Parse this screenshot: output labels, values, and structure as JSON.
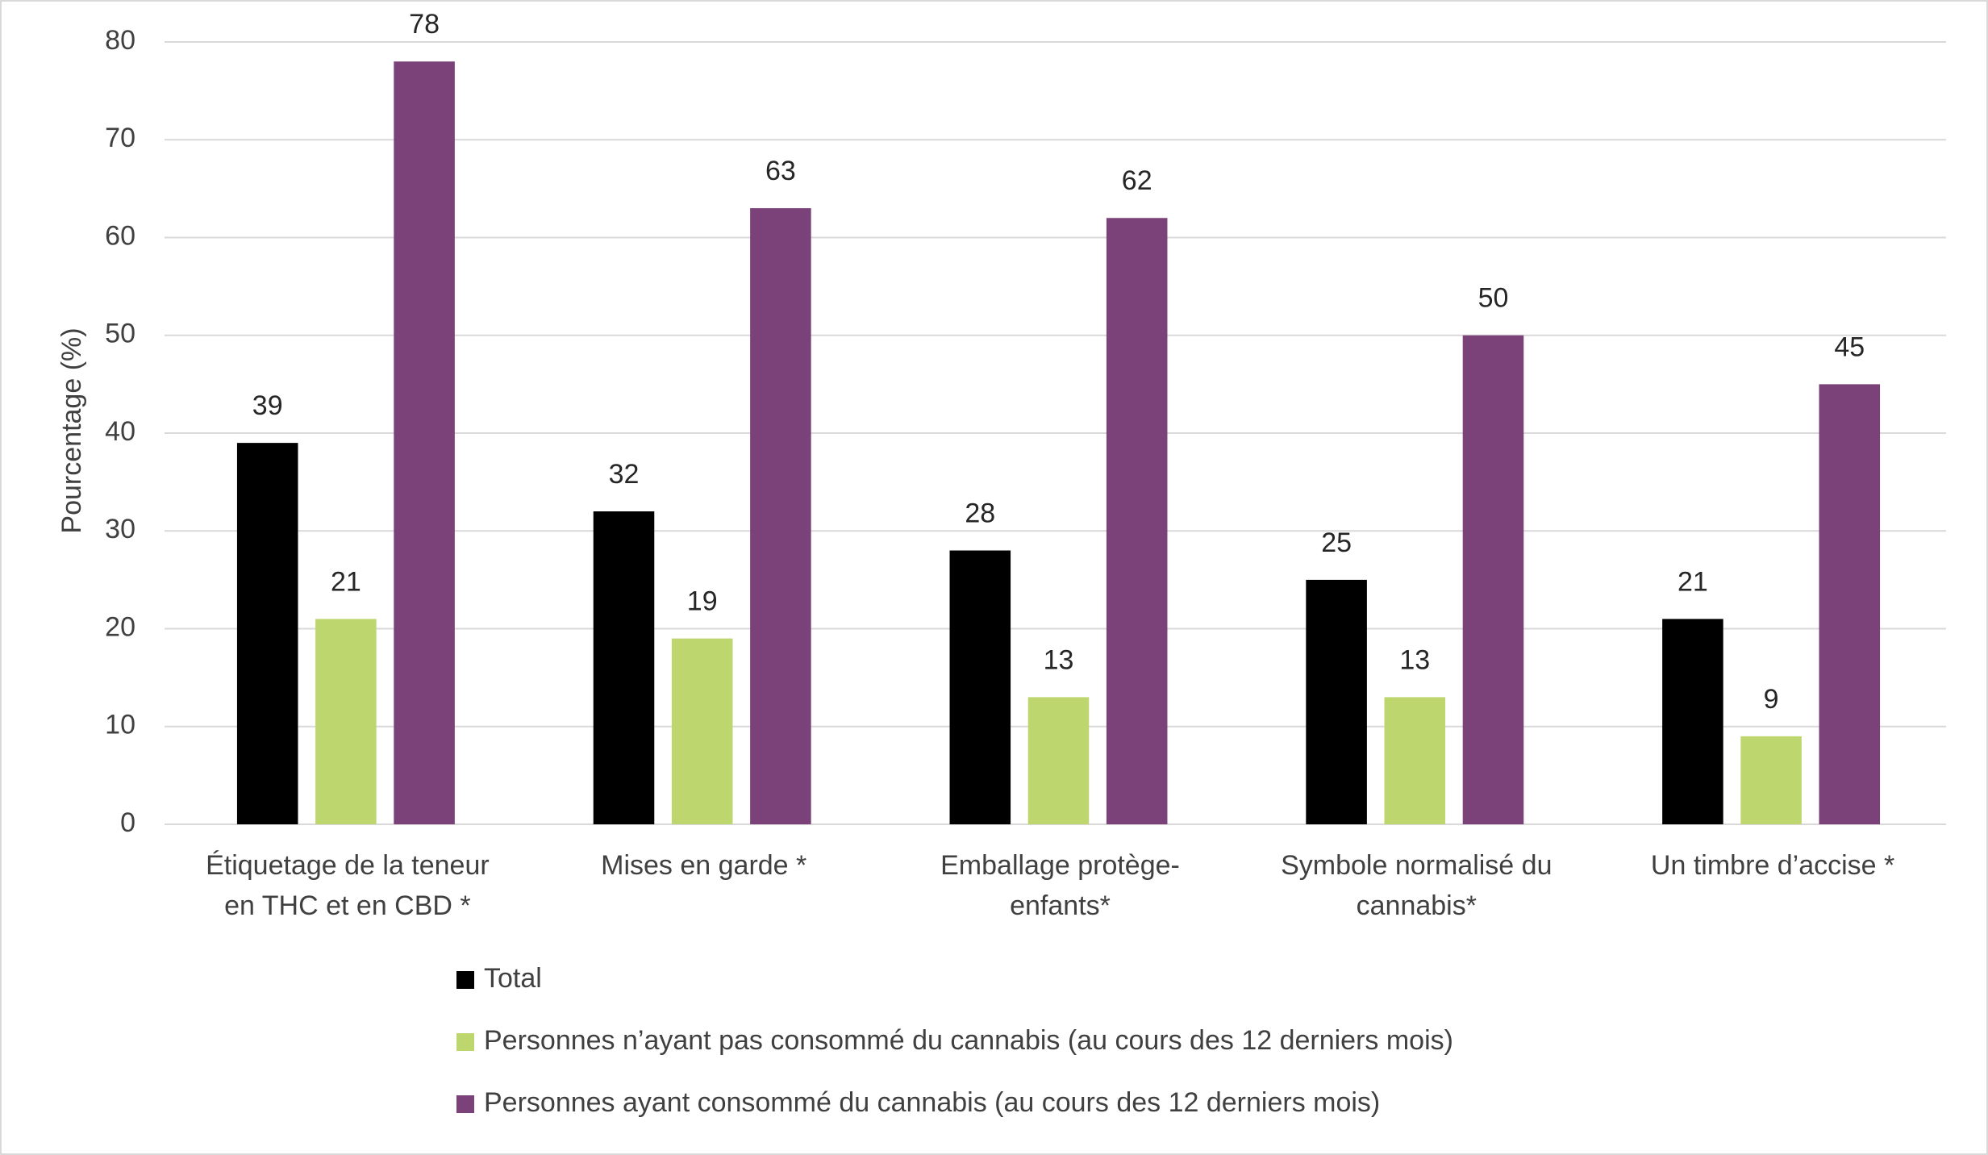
{
  "chart_data": {
    "type": "bar",
    "y_label": "Pourcentage (%)",
    "categories": [
      [
        "Étiquetage de la teneur",
        "en THC et en CBD *"
      ],
      [
        "Mises en garde *"
      ],
      [
        "Emballage protège-",
        "enfants*"
      ],
      [
        "Symbole normalisé du",
        "cannabis*"
      ],
      [
        "Un timbre d’accise *"
      ]
    ],
    "series": [
      {
        "name": "Total",
        "color": "#000000",
        "values": [
          39,
          32,
          28,
          25,
          21
        ]
      },
      {
        "name": "Personnes n’ayant pas consommé du cannabis (au cours des 12 derniers mois)",
        "color": "#bdd66e",
        "values": [
          21,
          19,
          13,
          13,
          9
        ]
      },
      {
        "name": "Personnes ayant consommé du cannabis (au cours des 12 derniers mois)",
        "color": "#7b4279",
        "values": [
          78,
          63,
          62,
          50,
          45
        ]
      }
    ],
    "ylim": [
      0,
      80
    ],
    "yticks": [
      0,
      10,
      20,
      30,
      40,
      50,
      60,
      70,
      80
    ],
    "grid": true,
    "legend": "bottom"
  }
}
